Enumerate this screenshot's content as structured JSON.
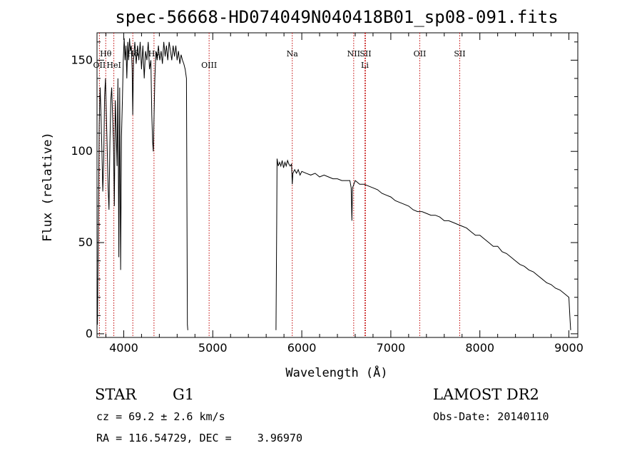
{
  "chart_data": {
    "type": "line",
    "title": "spec-56668-HD074049N040418B01_sp08-091.fits",
    "xlabel": "Wavelength (Å)",
    "ylabel": "Flux (relative)",
    "xlim": [
      3700,
      9100
    ],
    "ylim": [
      -2,
      165
    ],
    "xticks": [
      4000,
      5000,
      6000,
      7000,
      8000,
      9000
    ],
    "yticks": [
      0,
      50,
      100,
      150
    ],
    "series": [
      {
        "color": "#000000",
        "segments": [
          [
            [
              3705,
              5
            ],
            [
              3715,
              60
            ],
            [
              3725,
              115
            ],
            [
              3735,
              135
            ],
            [
              3745,
              120
            ],
            [
              3755,
              100
            ],
            [
              3765,
              78
            ],
            [
              3775,
              95
            ],
            [
              3785,
              130
            ],
            [
              3795,
              140
            ],
            [
              3805,
              120
            ],
            [
              3815,
              100
            ],
            [
              3825,
              80
            ],
            [
              3835,
              68
            ],
            [
              3845,
              105
            ],
            [
              3855,
              128
            ],
            [
              3865,
              135
            ],
            [
              3875,
              120
            ],
            [
              3885,
              105
            ],
            [
              3895,
              70
            ],
            [
              3905,
              128
            ],
            [
              3915,
              112
            ],
            [
              3925,
              92
            ],
            [
              3935,
              140
            ],
            [
              3945,
              42
            ],
            [
              3955,
              135
            ],
            [
              3965,
              35
            ],
            [
              3975,
              108
            ],
            [
              3985,
              128
            ],
            [
              3995,
              150
            ],
            [
              4005,
              162
            ],
            [
              4015,
              150
            ],
            [
              4025,
              158
            ],
            [
              4035,
              140
            ],
            [
              4045,
              160
            ],
            [
              4055,
              150
            ],
            [
              4065,
              162
            ],
            [
              4075,
              155
            ],
            [
              4085,
              158
            ],
            [
              4095,
              145
            ],
            [
              4101,
              120
            ],
            [
              4110,
              150
            ],
            [
              4125,
              160
            ],
            [
              4140,
              148
            ],
            [
              4155,
              158
            ],
            [
              4170,
              150
            ],
            [
              4185,
              160
            ],
            [
              4200,
              145
            ],
            [
              4215,
              158
            ],
            [
              4230,
              140
            ],
            [
              4245,
              155
            ],
            [
              4260,
              150
            ],
            [
              4275,
              160
            ],
            [
              4290,
              145
            ],
            [
              4305,
              150
            ],
            [
              4315,
              120
            ],
            [
              4325,
              105
            ],
            [
              4332,
              100
            ],
            [
              4340,
              118
            ],
            [
              4350,
              140
            ],
            [
              4362,
              155
            ],
            [
              4375,
              150
            ],
            [
              4390,
              158
            ],
            [
              4405,
              150
            ],
            [
              4420,
              155
            ],
            [
              4435,
              148
            ],
            [
              4450,
              160
            ],
            [
              4465,
              152
            ],
            [
              4480,
              158
            ],
            [
              4495,
              150
            ],
            [
              4510,
              160
            ],
            [
              4525,
              155
            ],
            [
              4540,
              150
            ],
            [
              4555,
              158
            ],
            [
              4570,
              152
            ],
            [
              4585,
              158
            ],
            [
              4600,
              150
            ],
            [
              4615,
              155
            ],
            [
              4630,
              148
            ],
            [
              4645,
              153
            ],
            [
              4660,
              150
            ],
            [
              4675,
              148
            ],
            [
              4690,
              145
            ],
            [
              4705,
              140
            ],
            [
              4715,
              5
            ],
            [
              4720,
              2
            ]
          ],
          [
            [
              5710,
              2
            ],
            [
              5718,
              60
            ],
            [
              5722,
              96
            ],
            [
              5735,
              92
            ],
            [
              5750,
              94
            ],
            [
              5765,
              92
            ],
            [
              5780,
              95
            ],
            [
              5795,
              91
            ],
            [
              5810,
              94
            ],
            [
              5825,
              92
            ],
            [
              5840,
              95
            ],
            [
              5855,
              93
            ],
            [
              5870,
              92
            ],
            [
              5885,
              93
            ],
            [
              5893,
              82
            ],
            [
              5900,
              88
            ],
            [
              5920,
              90
            ],
            [
              5940,
              88
            ],
            [
              5960,
              90
            ],
            [
              5980,
              87
            ],
            [
              6000,
              89
            ],
            [
              6050,
              88
            ],
            [
              6100,
              87
            ],
            [
              6150,
              88
            ],
            [
              6200,
              86
            ],
            [
              6250,
              87
            ],
            [
              6300,
              86
            ],
            [
              6350,
              85
            ],
            [
              6400,
              85
            ],
            [
              6450,
              84
            ],
            [
              6500,
              84
            ],
            [
              6540,
              84
            ],
            [
              6555,
              80
            ],
            [
              6563,
              62
            ],
            [
              6570,
              80
            ],
            [
              6600,
              84
            ],
            [
              6650,
              82
            ],
            [
              6700,
              82
            ],
            [
              6750,
              81
            ],
            [
              6800,
              80
            ],
            [
              6850,
              79
            ],
            [
              6900,
              77
            ],
            [
              6950,
              76
            ],
            [
              7000,
              75
            ],
            [
              7050,
              73
            ],
            [
              7100,
              72
            ],
            [
              7150,
              71
            ],
            [
              7200,
              70
            ],
            [
              7250,
              68
            ],
            [
              7300,
              67
            ],
            [
              7350,
              67
            ],
            [
              7400,
              66
            ],
            [
              7450,
              65
            ],
            [
              7500,
              65
            ],
            [
              7550,
              64
            ],
            [
              7600,
              62
            ],
            [
              7650,
              62
            ],
            [
              7700,
              61
            ],
            [
              7750,
              60
            ],
            [
              7800,
              59
            ],
            [
              7850,
              58
            ],
            [
              7900,
              56
            ],
            [
              7950,
              54
            ],
            [
              8000,
              54
            ],
            [
              8050,
              52
            ],
            [
              8100,
              50
            ],
            [
              8150,
              48
            ],
            [
              8200,
              48
            ],
            [
              8250,
              45
            ],
            [
              8300,
              44
            ],
            [
              8350,
              42
            ],
            [
              8400,
              40
            ],
            [
              8450,
              38
            ],
            [
              8500,
              37
            ],
            [
              8550,
              35
            ],
            [
              8600,
              34
            ],
            [
              8650,
              32
            ],
            [
              8700,
              30
            ],
            [
              8750,
              28
            ],
            [
              8800,
              27
            ],
            [
              8850,
              25
            ],
            [
              8900,
              24
            ],
            [
              8950,
              22
            ],
            [
              9000,
              20
            ],
            [
              9010,
              10
            ],
            [
              9020,
              2
            ]
          ]
        ]
      }
    ],
    "spectral_lines": [
      {
        "label": "OII",
        "x": 3727,
        "label_row": 2
      },
      {
        "label": "Hθ",
        "x": 3798,
        "label_row": 1
      },
      {
        "label": "HeI",
        "x": 3889,
        "label_row": 2
      },
      {
        "label": "Hδ",
        "x": 4102,
        "label_row": 1
      },
      {
        "label": "Hγ",
        "x": 4340,
        "label_row": 1
      },
      {
        "label": "OIII",
        "x": 4959,
        "label_row": 2
      },
      {
        "label": "Na",
        "x": 5893,
        "label_row": 1
      },
      {
        "label": "NII",
        "x": 6583,
        "label_row": 1
      },
      {
        "label": "SII",
        "x": 6716,
        "label_row": 1
      },
      {
        "label": "Li",
        "x": 6708,
        "label_row": 2
      },
      {
        "label": "OII",
        "x": 7325,
        "label_row": 1
      },
      {
        "label": "SII",
        "x": 7774,
        "label_row": 1
      }
    ],
    "line_marker_color": "#c00000",
    "grid": false,
    "legend": "none"
  },
  "info": {
    "object_class": "STAR",
    "subclass": "G1",
    "survey": "LAMOST DR2",
    "cz": "cz = 69.2 ± 2.6 km/s",
    "obs_date": "Obs-Date: 20140110",
    "coords": "RA = 116.54729, DEC =    3.96970"
  }
}
